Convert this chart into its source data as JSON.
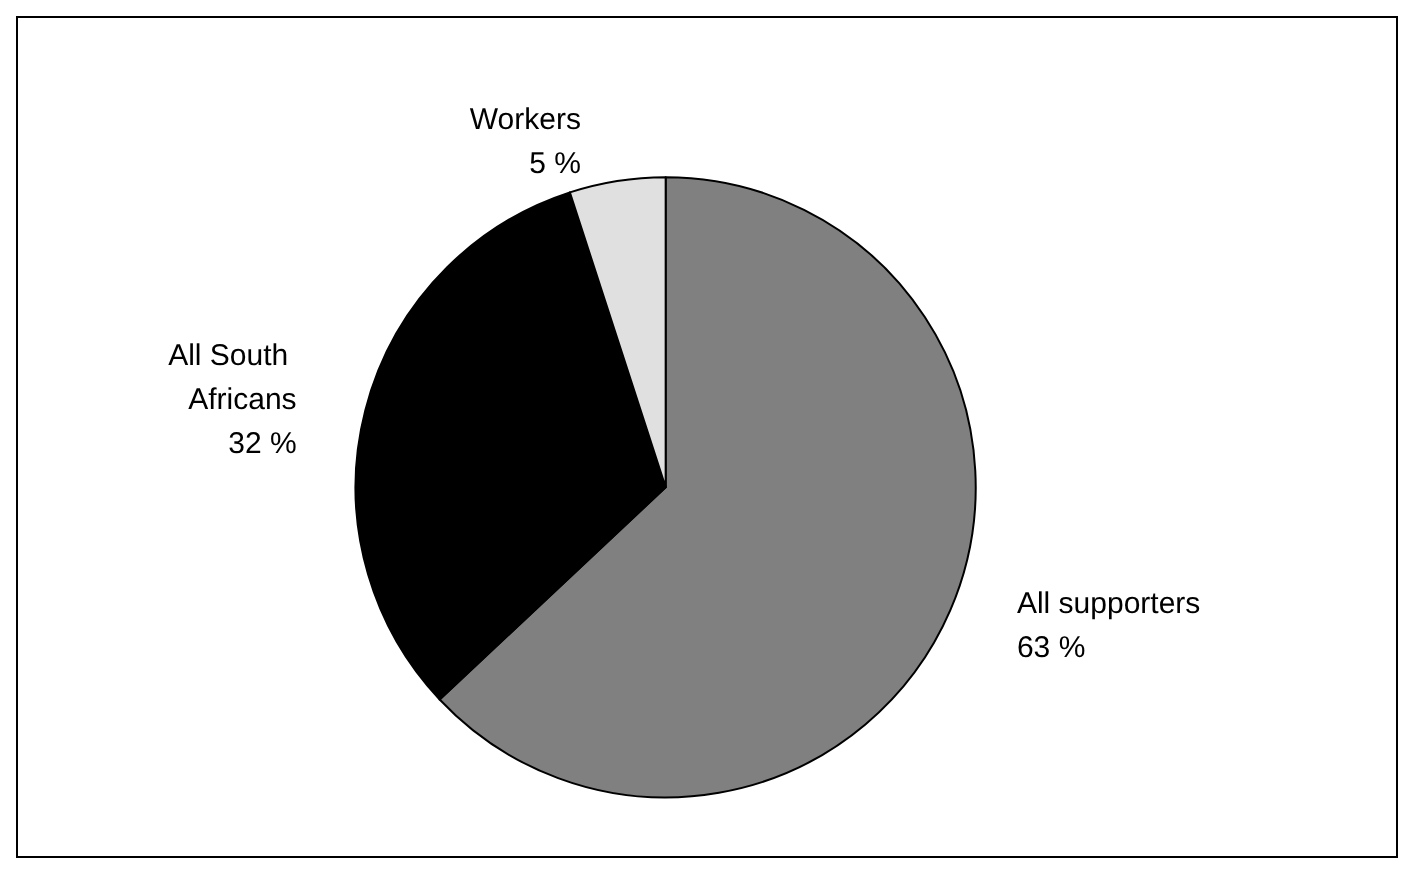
{
  "chart_data": {
    "type": "pie",
    "categories": [
      "All supporters",
      "All South Africans",
      "Workers"
    ],
    "values": [
      63,
      32,
      5
    ],
    "value_labels": [
      "63 %",
      "32 %",
      "5 %"
    ],
    "colors": [
      "#808080",
      "#000000",
      "#e0e0e0"
    ]
  }
}
